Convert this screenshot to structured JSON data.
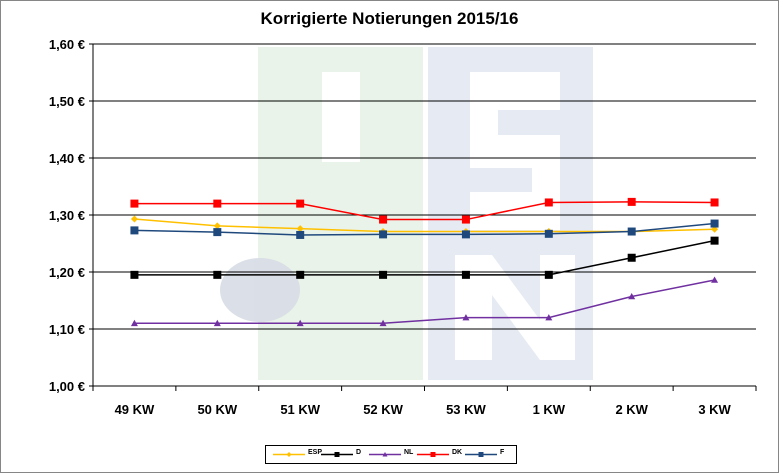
{
  "chart_data": {
    "type": "line",
    "title": "Korrigierte Notierungen 2015/16",
    "categories": [
      "49 KW",
      "50 KW",
      "51 KW",
      "52 KW",
      "53 KW",
      "1 KW",
      "2 KW",
      "3 KW"
    ],
    "ylim": [
      1.0,
      1.6
    ],
    "yticks": [
      "1,00 €",
      "1,10 €",
      "1,20 €",
      "1,30 €",
      "1,40 €",
      "1,50 €",
      "1,60 €"
    ],
    "grid": true,
    "legend_position": "bottom",
    "series": [
      {
        "name": "ESP",
        "color": "#FFC000",
        "marker": "diamond",
        "values": [
          1.293,
          1.281,
          1.276,
          1.271,
          1.271,
          1.271,
          1.271,
          1.275
        ]
      },
      {
        "name": "D",
        "color": "#000000",
        "marker": "square",
        "values": [
          1.195,
          1.195,
          1.195,
          1.195,
          1.195,
          1.195,
          1.225,
          1.255
        ]
      },
      {
        "name": "NL",
        "color": "#7030A0",
        "marker": "triangle",
        "values": [
          1.11,
          1.11,
          1.11,
          1.11,
          1.12,
          1.12,
          1.157,
          1.186
        ]
      },
      {
        "name": "DK",
        "color": "#FF0000",
        "marker": "square",
        "values": [
          1.32,
          1.32,
          1.32,
          1.292,
          1.292,
          1.322,
          1.323,
          1.322
        ]
      },
      {
        "name": "F",
        "color": "#1F497D",
        "marker": "square",
        "values": [
          1.273,
          1.27,
          1.265,
          1.266,
          1.266,
          1.267,
          1.271,
          1.285
        ]
      }
    ]
  }
}
